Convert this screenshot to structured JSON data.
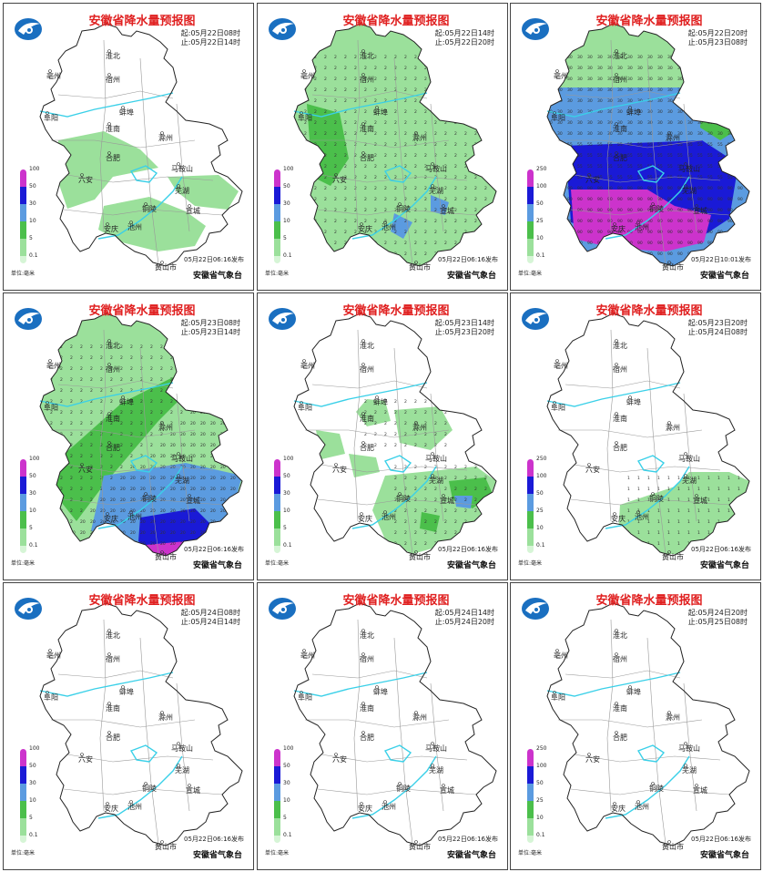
{
  "panels": [
    {
      "title": "安徽省降水量预报图",
      "start": "起:05月22日08时",
      "end": "止:05月22日14时",
      "issue": "05月22日06:16发布",
      "unit": "单位:毫米",
      "agency": "安徽省气象台",
      "legend": [
        "100",
        "50",
        "30",
        "10",
        "5",
        "0.1"
      ],
      "fill": "light",
      "colors": [
        "#cc33cc",
        "#1a1ad6",
        "#5b9be0",
        "#4bbf4b",
        "#9be09b",
        "#d6f5d6"
      ]
    },
    {
      "title": "安徽省降水量预报图",
      "start": "起:05月22日14时",
      "end": "止:05月22日20时",
      "issue": "05月22日06:16发布",
      "unit": "单位:毫米",
      "agency": "安徽省气象台",
      "legend": [
        "100",
        "50",
        "30",
        "10",
        "5",
        "0.1"
      ],
      "fill": "light-full",
      "colors": [
        "#cc33cc",
        "#1a1ad6",
        "#5b9be0",
        "#4bbf4b",
        "#9be09b",
        "#d6f5d6"
      ]
    },
    {
      "title": "安徽省降水量预报图",
      "start": "起:05月22日20时",
      "end": "止:05月23日08时",
      "issue": "05月22日10:01发布",
      "unit": "单位:毫米",
      "agency": "安徽省气象台",
      "legend": [
        "250",
        "100",
        "50",
        "25",
        "10",
        "0.1"
      ],
      "fill": "heavy",
      "colors": [
        "#cc33cc",
        "#1a1ad6",
        "#5b9be0",
        "#4bbf4b",
        "#9be09b",
        "#d6f5d6"
      ]
    },
    {
      "title": "安徽省降水量预报图",
      "start": "起:05月23日08时",
      "end": "止:05月23日14时",
      "issue": "05月22日06:16发布",
      "unit": "单位:毫米",
      "agency": "安徽省气象台",
      "legend": [
        "100",
        "50",
        "30",
        "10",
        "5",
        "0.1"
      ],
      "fill": "moderate",
      "colors": [
        "#cc33cc",
        "#1a1ad6",
        "#5b9be0",
        "#4bbf4b",
        "#9be09b",
        "#d6f5d6"
      ]
    },
    {
      "title": "安徽省降水量预报图",
      "start": "起:05月23日14时",
      "end": "止:05月23日20时",
      "issue": "05月22日06:16发布",
      "unit": "单位:毫米",
      "agency": "安徽省气象台",
      "legend": [
        "100",
        "50",
        "30",
        "10",
        "5",
        "0.1"
      ],
      "fill": "scattered",
      "colors": [
        "#cc33cc",
        "#1a1ad6",
        "#5b9be0",
        "#4bbf4b",
        "#9be09b",
        "#d6f5d6"
      ]
    },
    {
      "title": "安徽省降水量预报图",
      "start": "起:05月23日20时",
      "end": "止:05月24日08时",
      "issue": "05月22日06:16发布",
      "unit": "单位:毫米",
      "agency": "安徽省气象台",
      "legend": [
        "250",
        "100",
        "50",
        "25",
        "10",
        "0.1"
      ],
      "fill": "southeast",
      "colors": [
        "#cc33cc",
        "#1a1ad6",
        "#5b9be0",
        "#4bbf4b",
        "#9be09b",
        "#d6f5d6"
      ]
    },
    {
      "title": "安徽省降水量预报图",
      "start": "起:05月24日08时",
      "end": "止:05月24日14时",
      "issue": "05月22日06:16发布",
      "unit": "单位:毫米",
      "agency": "安徽省气象台",
      "legend": [
        "100",
        "50",
        "30",
        "10",
        "5",
        "0.1"
      ],
      "fill": "none",
      "colors": [
        "#cc33cc",
        "#1a1ad6",
        "#5b9be0",
        "#4bbf4b",
        "#9be09b",
        "#d6f5d6"
      ]
    },
    {
      "title": "安徽省降水量预报图",
      "start": "起:05月24日14时",
      "end": "止:05月24日20时",
      "issue": "05月22日06:16发布",
      "unit": "单位:毫米",
      "agency": "安徽省气象台",
      "legend": [
        "100",
        "50",
        "30",
        "10",
        "5",
        "0.1"
      ],
      "fill": "none",
      "colors": [
        "#cc33cc",
        "#1a1ad6",
        "#5b9be0",
        "#4bbf4b",
        "#9be09b",
        "#d6f5d6"
      ]
    },
    {
      "title": "安徽省降水量预报图",
      "start": "起:05月24日20时",
      "end": "止:05月25日08时",
      "issue": "05月22日06:16发布",
      "unit": "单位:毫米",
      "agency": "安徽省气象台",
      "legend": [
        "250",
        "100",
        "50",
        "25",
        "10",
        "0.1"
      ],
      "fill": "none",
      "colors": [
        "#cc33cc",
        "#1a1ad6",
        "#5b9be0",
        "#4bbf4b",
        "#9be09b",
        "#d6f5d6"
      ]
    }
  ],
  "cities": [
    "亳州",
    "淮北",
    "宿州",
    "阜阳",
    "蚌埠",
    "淮南",
    "滁州",
    "合肥",
    "六安",
    "马鞍山",
    "芜湖",
    "铜陵",
    "宣城",
    "安庆",
    "池州",
    "黄山市"
  ]
}
